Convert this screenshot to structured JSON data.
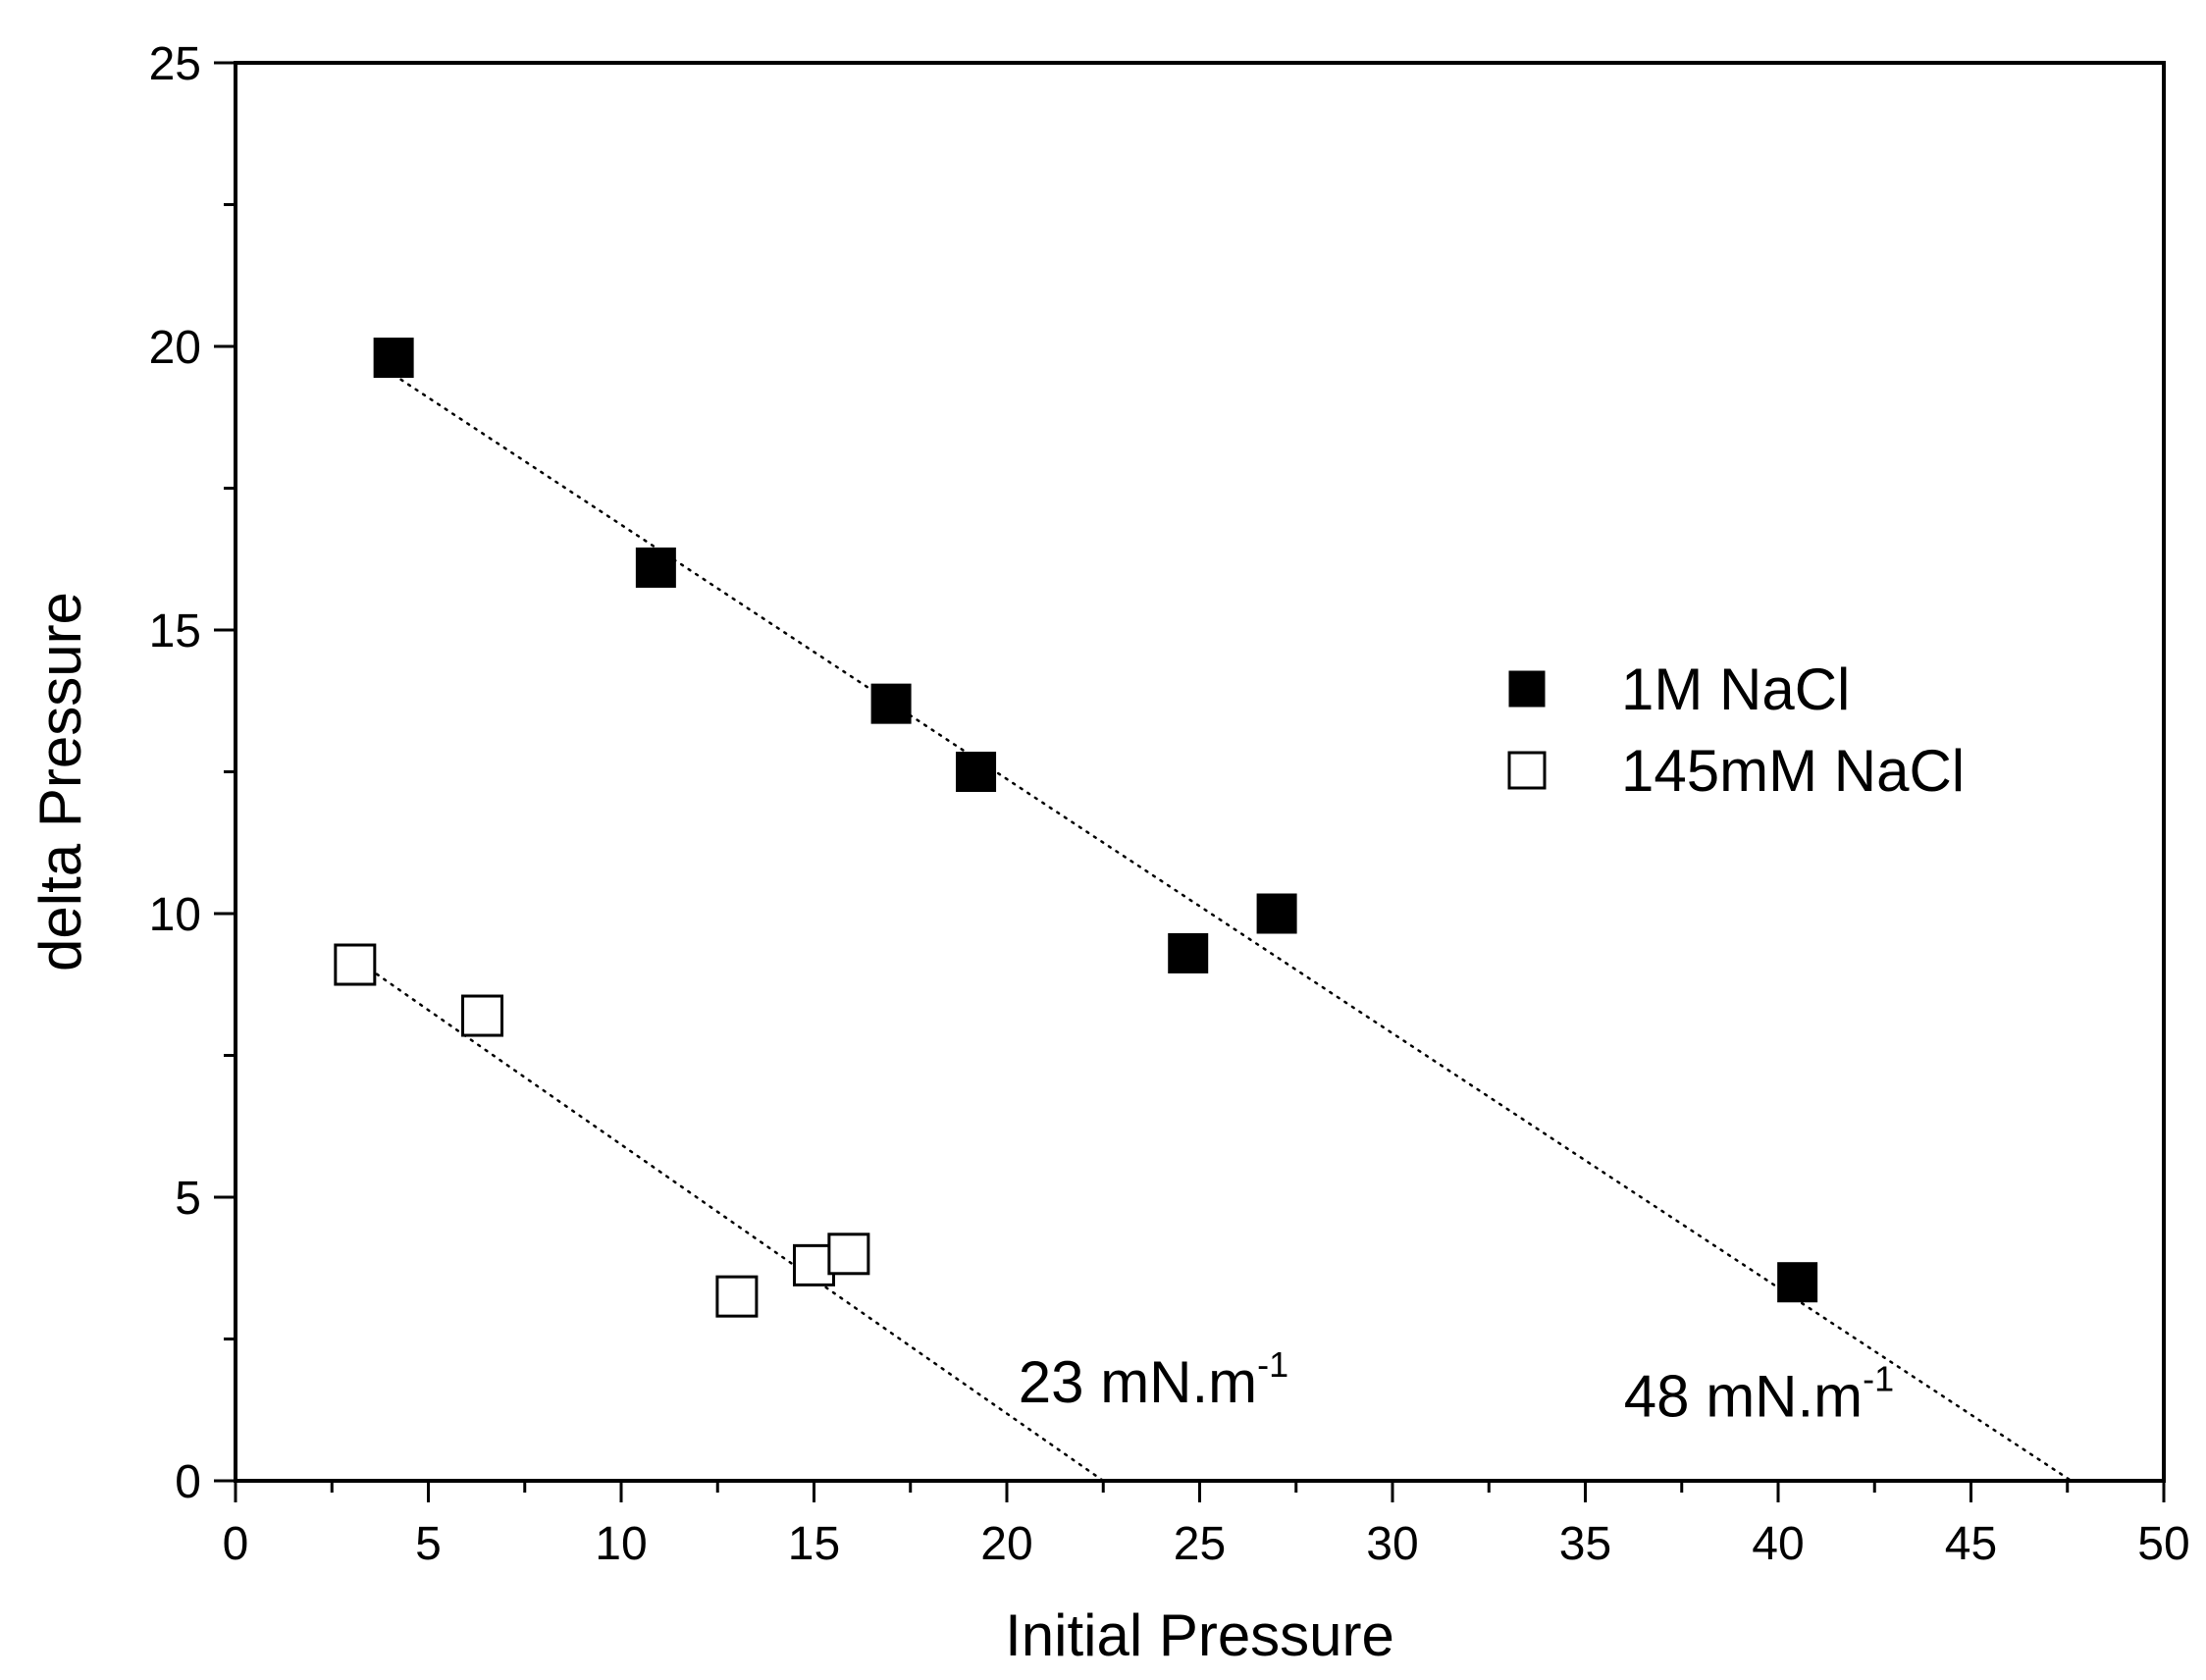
{
  "chart_data": {
    "type": "scatter",
    "xlabel": "Initial Pressure",
    "ylabel": "delta Pressure",
    "xlim": [
      0,
      50
    ],
    "ylim": [
      0,
      25
    ],
    "xticks": [
      0,
      5,
      10,
      15,
      20,
      25,
      30,
      35,
      40,
      45,
      50
    ],
    "yticks": [
      0,
      5,
      10,
      15,
      20,
      25
    ],
    "x_tick_labels": [
      "0",
      "5",
      "10",
      "15",
      "20",
      "25",
      "30",
      "35",
      "40",
      "45",
      "50"
    ],
    "y_tick_labels": [
      "0",
      "5",
      "10",
      "15",
      "20",
      "25"
    ],
    "grid": false,
    "legend_position": "center-right",
    "series": [
      {
        "name": "1M NaCl",
        "marker": "filled-square",
        "color": "#000000",
        "x": [
          4.1,
          10.9,
          17.0,
          19.2,
          24.7,
          27.0,
          40.5
        ],
        "y": [
          19.8,
          16.1,
          13.7,
          12.5,
          9.3,
          10.0,
          3.5
        ],
        "fit_line": {
          "x": [
            4.1,
            47.6
          ],
          "y": [
            19.5,
            0.0
          ]
        }
      },
      {
        "name": "145mM NaCl",
        "marker": "open-square",
        "color": "#000000",
        "x": [
          3.1,
          6.4,
          13.0,
          15.0,
          15.9
        ],
        "y": [
          9.1,
          8.2,
          3.25,
          3.8,
          4.0
        ],
        "fit_line": {
          "x": [
            3.1,
            22.5
          ],
          "y": [
            9.2,
            0.0
          ]
        }
      }
    ],
    "annotations": [
      {
        "text": "23 mN.m",
        "sup": "-1",
        "x": 20.3,
        "y": 1.75
      },
      {
        "text": "48 mN.m",
        "sup": "-1",
        "x": 36.0,
        "y": 1.5
      }
    ]
  }
}
